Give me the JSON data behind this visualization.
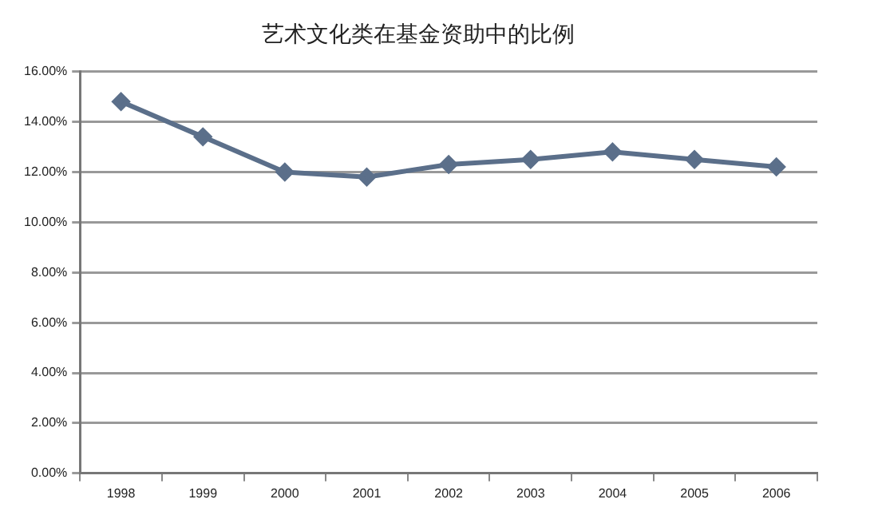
{
  "chart_data": {
    "type": "line",
    "title": "艺术文化类在基金资助中的比例",
    "categories": [
      "1998",
      "1999",
      "2000",
      "2001",
      "2002",
      "2003",
      "2004",
      "2005",
      "2006"
    ],
    "series": [
      {
        "color": "#5b6f8a",
        "values": [
          14.8,
          13.4,
          12.0,
          11.8,
          12.3,
          12.5,
          12.8,
          12.5,
          12.2
        ]
      }
    ],
    "ylim": [
      0,
      16
    ],
    "yticks": [
      {
        "value": 0,
        "label": "0.00%"
      },
      {
        "value": 2,
        "label": "2.00%"
      },
      {
        "value": 4,
        "label": "4.00%"
      },
      {
        "value": 6,
        "label": "6.00%"
      },
      {
        "value": 8,
        "label": "8.00%"
      },
      {
        "value": 10,
        "label": "10.00%"
      },
      {
        "value": 12,
        "label": "12.00%"
      },
      {
        "value": 14,
        "label": "14.00%"
      },
      {
        "value": 16,
        "label": "16.00%"
      }
    ],
    "grid": "y",
    "marker": "diamond",
    "line_style": "solid",
    "legend": false
  }
}
